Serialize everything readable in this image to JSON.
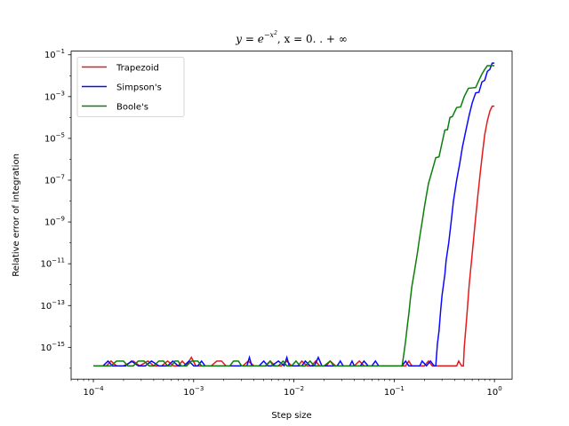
{
  "chart_data": {
    "type": "line",
    "title_parts": {
      "y": "y",
      "eq": " = ",
      "e": "e",
      "exp": "−x",
      "exp2": "2",
      "rest": ",  x = 0. . + ∞"
    },
    "xlabel": "Step size",
    "ylabel": "Relative error of integration",
    "xscale": "log",
    "yscale": "log",
    "xlim": [
      6e-05,
      1.5
    ],
    "ylim": [
      3e-17,
      0.15
    ],
    "x_ticks": [
      {
        "value": 0.0001,
        "base": "10",
        "exp": "−4"
      },
      {
        "value": 0.001,
        "base": "10",
        "exp": "−3"
      },
      {
        "value": 0.01,
        "base": "10",
        "exp": "−2"
      },
      {
        "value": 0.1,
        "base": "10",
        "exp": "−1"
      },
      {
        "value": 1,
        "base": "10",
        "exp": "0"
      }
    ],
    "y_ticks": [
      {
        "value": 1e-15,
        "base": "10",
        "exp": "−15"
      },
      {
        "value": 1e-13,
        "base": "10",
        "exp": "−13"
      },
      {
        "value": 1e-11,
        "base": "10",
        "exp": "−11"
      },
      {
        "value": 1e-09,
        "base": "10",
        "exp": "−9"
      },
      {
        "value": 1e-07,
        "base": "10",
        "exp": "−7"
      },
      {
        "value": 1e-05,
        "base": "10",
        "exp": "−5"
      },
      {
        "value": 0.001,
        "base": "10",
        "exp": "−3"
      },
      {
        "value": 0.1,
        "base": "10",
        "exp": "−1"
      }
    ],
    "grid": false,
    "legend_position": "top-left",
    "series": [
      {
        "name": "Trapezoid",
        "color": "#e41a1c",
        "points": [
          [
            0.0001,
            1.3e-16
          ],
          [
            0.000135,
            1.3e-16
          ],
          [
            0.00015,
            2.2e-16
          ],
          [
            0.00017,
            1.3e-16
          ],
          [
            0.0002,
            1.3e-16
          ],
          [
            0.00025,
            2.2e-16
          ],
          [
            0.00029,
            1.3e-16
          ],
          [
            0.00035,
            2.2e-16
          ],
          [
            0.0004,
            1.3e-16
          ],
          [
            0.00048,
            1.3e-16
          ],
          [
            0.00055,
            2.2e-16
          ],
          [
            0.00063,
            1.3e-16
          ],
          [
            0.0007,
            1.3e-16
          ],
          [
            0.00077,
            2.2e-16
          ],
          [
            0.00085,
            1.3e-16
          ],
          [
            0.0009,
            2.2e-16
          ],
          [
            0.00095,
            3.3e-16
          ],
          [
            0.00105,
            1.3e-16
          ],
          [
            0.0012,
            1.3e-16
          ],
          [
            0.0015,
            1.3e-16
          ],
          [
            0.0017,
            2.2e-16
          ],
          [
            0.0019,
            2.2e-16
          ],
          [
            0.0021,
            1.3e-16
          ],
          [
            0.0023,
            1.3e-16
          ],
          [
            0.0027,
            1.3e-16
          ],
          [
            0.0031,
            1.3e-16
          ],
          [
            0.0035,
            2.2e-16
          ],
          [
            0.004,
            1.3e-16
          ],
          [
            0.0046,
            1.3e-16
          ],
          [
            0.0053,
            1.3e-16
          ],
          [
            0.0058,
            2.2e-16
          ],
          [
            0.0065,
            1.3e-16
          ],
          [
            0.0075,
            1.3e-16
          ],
          [
            0.0085,
            2.2e-16
          ],
          [
            0.0095,
            1.3e-16
          ],
          [
            0.011,
            1.3e-16
          ],
          [
            0.012,
            2.2e-16
          ],
          [
            0.0135,
            1.3e-16
          ],
          [
            0.015,
            1.3e-16
          ],
          [
            0.0165,
            2.2e-16
          ],
          [
            0.018,
            1.3e-16
          ],
          [
            0.021,
            1.3e-16
          ],
          [
            0.023,
            2.2e-16
          ],
          [
            0.026,
            1.3e-16
          ],
          [
            0.03,
            1.3e-16
          ],
          [
            0.035,
            1.3e-16
          ],
          [
            0.04,
            1.3e-16
          ],
          [
            0.045,
            2.2e-16
          ],
          [
            0.05,
            1.3e-16
          ],
          [
            0.06,
            1.3e-16
          ],
          [
            0.07,
            1.3e-16
          ],
          [
            0.08,
            1.3e-16
          ],
          [
            0.095,
            1.3e-16
          ],
          [
            0.11,
            1.3e-16
          ],
          [
            0.13,
            1.3e-16
          ],
          [
            0.14,
            2.2e-16
          ],
          [
            0.15,
            1.3e-16
          ],
          [
            0.17,
            1.3e-16
          ],
          [
            0.2,
            1.3e-16
          ],
          [
            0.22,
            2.2e-16
          ],
          [
            0.24,
            1.3e-16
          ],
          [
            0.28,
            1.3e-16
          ],
          [
            0.32,
            1.3e-16
          ],
          [
            0.37,
            1.3e-16
          ],
          [
            0.42,
            1.3e-16
          ],
          [
            0.44,
            2.2e-16
          ],
          [
            0.47,
            1.3e-16
          ],
          [
            0.49,
            1.3e-16
          ],
          [
            0.5,
            1e-15
          ],
          [
            0.53,
            3e-14
          ],
          [
            0.56,
            1e-12
          ],
          [
            0.6,
            3e-11
          ],
          [
            0.64,
            8e-10
          ],
          [
            0.68,
            1.5e-08
          ],
          [
            0.72,
            2e-07
          ],
          [
            0.76,
            2e-06
          ],
          [
            0.8,
            1.5e-05
          ],
          [
            0.85,
            7e-05
          ],
          [
            0.9,
            0.0002
          ],
          [
            0.95,
            0.00035
          ],
          [
            1.0,
            0.00035
          ]
        ]
      },
      {
        "name": "Simpson's",
        "color": "#0a0aff",
        "points": [
          [
            0.0001,
            1.3e-16
          ],
          [
            0.000125,
            1.3e-16
          ],
          [
            0.00014,
            2.2e-16
          ],
          [
            0.000155,
            1.3e-16
          ],
          [
            0.00018,
            1.3e-16
          ],
          [
            0.00021,
            1.3e-16
          ],
          [
            0.00024,
            2.2e-16
          ],
          [
            0.00028,
            1.3e-16
          ],
          [
            0.00033,
            1.3e-16
          ],
          [
            0.00038,
            2.2e-16
          ],
          [
            0.00045,
            1.3e-16
          ],
          [
            0.00055,
            1.3e-16
          ],
          [
            0.00062,
            2.2e-16
          ],
          [
            0.0007,
            1.3e-16
          ],
          [
            0.0008,
            1.3e-16
          ],
          [
            0.0009,
            2.2e-16
          ],
          [
            0.001,
            1.3e-16
          ],
          [
            0.0011,
            1.3e-16
          ],
          [
            0.0012,
            2.2e-16
          ],
          [
            0.0013,
            1.3e-16
          ],
          [
            0.0015,
            1.3e-16
          ],
          [
            0.0017,
            1.3e-16
          ],
          [
            0.0019,
            1.3e-16
          ],
          [
            0.0022,
            1.3e-16
          ],
          [
            0.0026,
            1.3e-16
          ],
          [
            0.003,
            1.3e-16
          ],
          [
            0.0034,
            1.3e-16
          ],
          [
            0.0036,
            3.3e-16
          ],
          [
            0.0038,
            1.3e-16
          ],
          [
            0.0045,
            1.3e-16
          ],
          [
            0.005,
            2.2e-16
          ],
          [
            0.0055,
            1.3e-16
          ],
          [
            0.006,
            1.3e-16
          ],
          [
            0.007,
            2.2e-16
          ],
          [
            0.008,
            1.3e-16
          ],
          [
            0.0085,
            3.3e-16
          ],
          [
            0.009,
            1.3e-16
          ],
          [
            0.01,
            1.3e-16
          ],
          [
            0.012,
            1.3e-16
          ],
          [
            0.013,
            2.2e-16
          ],
          [
            0.0145,
            1.3e-16
          ],
          [
            0.016,
            1.3e-16
          ],
          [
            0.0175,
            3.3e-16
          ],
          [
            0.019,
            1.3e-16
          ],
          [
            0.023,
            1.3e-16
          ],
          [
            0.027,
            1.3e-16
          ],
          [
            0.029,
            2.2e-16
          ],
          [
            0.031,
            1.3e-16
          ],
          [
            0.036,
            1.3e-16
          ],
          [
            0.038,
            2.2e-16
          ],
          [
            0.04,
            1.3e-16
          ],
          [
            0.046,
            1.3e-16
          ],
          [
            0.05,
            2.2e-16
          ],
          [
            0.055,
            1.3e-16
          ],
          [
            0.06,
            1.3e-16
          ],
          [
            0.065,
            2.2e-16
          ],
          [
            0.07,
            1.3e-16
          ],
          [
            0.08,
            1.3e-16
          ],
          [
            0.09,
            1.3e-16
          ],
          [
            0.1,
            1.3e-16
          ],
          [
            0.12,
            1.3e-16
          ],
          [
            0.13,
            2.2e-16
          ],
          [
            0.14,
            1.3e-16
          ],
          [
            0.16,
            1.3e-16
          ],
          [
            0.18,
            1.3e-16
          ],
          [
            0.19,
            2.2e-16
          ],
          [
            0.21,
            1.3e-16
          ],
          [
            0.23,
            2.2e-16
          ],
          [
            0.25,
            1.3e-16
          ],
          [
            0.26,
            1.3e-16
          ],
          [
            0.27,
            1.5e-15
          ],
          [
            0.28,
            6e-15
          ],
          [
            0.29,
            5e-14
          ],
          [
            0.3,
            3e-13
          ],
          [
            0.32,
            3e-12
          ],
          [
            0.33,
            1.5e-11
          ],
          [
            0.35,
            1e-10
          ],
          [
            0.37,
            1e-09
          ],
          [
            0.39,
            1e-08
          ],
          [
            0.42,
            1e-07
          ],
          [
            0.45,
            6e-07
          ],
          [
            0.48,
            4e-06
          ],
          [
            0.52,
            2.5e-05
          ],
          [
            0.56,
            0.00013
          ],
          [
            0.6,
            0.0005
          ],
          [
            0.65,
            0.0015
          ],
          [
            0.7,
            0.0016
          ],
          [
            0.75,
            0.005
          ],
          [
            0.8,
            0.006
          ],
          [
            0.85,
            0.016
          ],
          [
            0.9,
            0.02
          ],
          [
            0.95,
            0.04
          ],
          [
            1.0,
            0.04
          ]
        ]
      },
      {
        "name": "Boole's",
        "color": "#0a7f0a",
        "points": [
          [
            0.0001,
            1.3e-16
          ],
          [
            0.00015,
            1.3e-16
          ],
          [
            0.00017,
            2.2e-16
          ],
          [
            0.0002,
            2.2e-16
          ],
          [
            0.00022,
            1.3e-16
          ],
          [
            0.00025,
            1.3e-16
          ],
          [
            0.00028,
            2.2e-16
          ],
          [
            0.00032,
            2.2e-16
          ],
          [
            0.00036,
            1.3e-16
          ],
          [
            0.0004,
            1.3e-16
          ],
          [
            0.00045,
            2.2e-16
          ],
          [
            0.0005,
            2.2e-16
          ],
          [
            0.00055,
            1.3e-16
          ],
          [
            0.0006,
            1.3e-16
          ],
          [
            0.00065,
            2.2e-16
          ],
          [
            0.0007,
            2.2e-16
          ],
          [
            0.00075,
            1.3e-16
          ],
          [
            0.00085,
            1.3e-16
          ],
          [
            0.00095,
            2.2e-16
          ],
          [
            0.0011,
            2.2e-16
          ],
          [
            0.0012,
            1.3e-16
          ],
          [
            0.0014,
            1.3e-16
          ],
          [
            0.0016,
            1.3e-16
          ],
          [
            0.0018,
            1.3e-16
          ],
          [
            0.002,
            1.3e-16
          ],
          [
            0.0023,
            1.3e-16
          ],
          [
            0.0025,
            2.2e-16
          ],
          [
            0.0028,
            2.2e-16
          ],
          [
            0.003,
            1.3e-16
          ],
          [
            0.0035,
            1.3e-16
          ],
          [
            0.004,
            1.3e-16
          ],
          [
            0.0045,
            1.3e-16
          ],
          [
            0.0052,
            1.3e-16
          ],
          [
            0.0058,
            2.2e-16
          ],
          [
            0.0062,
            1.3e-16
          ],
          [
            0.007,
            1.3e-16
          ],
          [
            0.0078,
            2.2e-16
          ],
          [
            0.0085,
            1.3e-16
          ],
          [
            0.0095,
            1.3e-16
          ],
          [
            0.0105,
            2.2e-16
          ],
          [
            0.0115,
            1.3e-16
          ],
          [
            0.013,
            1.3e-16
          ],
          [
            0.0145,
            2.2e-16
          ],
          [
            0.016,
            1.3e-16
          ],
          [
            0.018,
            1.3e-16
          ],
          [
            0.02,
            1.3e-16
          ],
          [
            0.023,
            2.2e-16
          ],
          [
            0.025,
            1.3e-16
          ],
          [
            0.028,
            1.3e-16
          ],
          [
            0.032,
            1.3e-16
          ],
          [
            0.036,
            1.3e-16
          ],
          [
            0.04,
            1.3e-16
          ],
          [
            0.045,
            1.3e-16
          ],
          [
            0.05,
            1.3e-16
          ],
          [
            0.06,
            1.3e-16
          ],
          [
            0.07,
            1.3e-16
          ],
          [
            0.08,
            1.3e-16
          ],
          [
            0.09,
            1.3e-16
          ],
          [
            0.1,
            1.3e-16
          ],
          [
            0.12,
            1.3e-16
          ],
          [
            0.125,
            5e-16
          ],
          [
            0.13,
            2e-15
          ],
          [
            0.135,
            1e-14
          ],
          [
            0.14,
            4e-14
          ],
          [
            0.145,
            2e-13
          ],
          [
            0.15,
            8e-13
          ],
          [
            0.16,
            5e-12
          ],
          [
            0.17,
            3e-11
          ],
          [
            0.18,
            2e-10
          ],
          [
            0.19,
            1e-09
          ],
          [
            0.2,
            5e-09
          ],
          [
            0.21,
            2e-08
          ],
          [
            0.22,
            7e-08
          ],
          [
            0.24,
            3e-07
          ],
          [
            0.26,
            1.2e-06
          ],
          [
            0.28,
            1.3e-06
          ],
          [
            0.3,
            6e-06
          ],
          [
            0.32,
            2.5e-05
          ],
          [
            0.34,
            2.6e-05
          ],
          [
            0.36,
            0.0001
          ],
          [
            0.38,
            0.00011
          ],
          [
            0.42,
            0.0003
          ],
          [
            0.46,
            0.00032
          ],
          [
            0.5,
            0.001
          ],
          [
            0.55,
            0.0025
          ],
          [
            0.6,
            0.0026
          ],
          [
            0.65,
            0.0027
          ],
          [
            0.7,
            0.006
          ],
          [
            0.75,
            0.012
          ],
          [
            0.8,
            0.02
          ],
          [
            0.85,
            0.03
          ],
          [
            0.9,
            0.03
          ],
          [
            0.95,
            0.03
          ],
          [
            1.0,
            0.03
          ]
        ]
      }
    ]
  }
}
